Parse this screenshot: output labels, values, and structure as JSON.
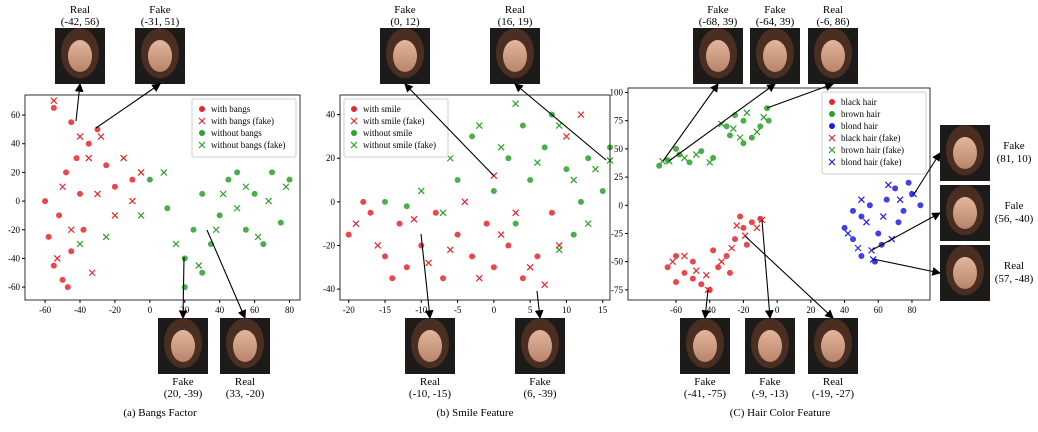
{
  "chart_data": [
    {
      "type": "scatter",
      "caption": "(a) Bangs Factor",
      "xlim": [
        -71.5,
        86
      ],
      "ylim": [
        -69,
        74
      ],
      "xticks": [
        -60,
        -40,
        -20,
        0,
        20,
        40,
        60,
        80
      ],
      "yticks": [
        -60,
        -40,
        -20,
        0,
        20,
        40,
        60
      ],
      "legend": "upper right",
      "series": [
        {
          "name": "with bangs",
          "color": "#e8262a",
          "marker": "o",
          "x": [
            -55,
            -50,
            -58,
            -45,
            -52,
            -40,
            -48,
            -42,
            -35,
            -45,
            -55,
            -30,
            -25,
            -38,
            -20,
            -10,
            -60,
            -47
          ],
          "values": [
            -45,
            -55,
            -25,
            -35,
            -10,
            5,
            20,
            30,
            40,
            55,
            65,
            50,
            25,
            -20,
            10,
            15,
            0,
            -60
          ]
        },
        {
          "name": "with bangs (fake)",
          "color": "#e8262a",
          "marker": "x",
          "x": [
            -53,
            -45,
            -50,
            -35,
            -28,
            -15,
            -5,
            -20,
            -30,
            -55,
            -40,
            -10,
            -33
          ],
          "values": [
            -40,
            -20,
            10,
            30,
            45,
            30,
            20,
            -10,
            5,
            70,
            45,
            0,
            -50
          ]
        },
        {
          "name": "without bangs",
          "color": "#2ca02c",
          "marker": "o",
          "x": [
            20,
            30,
            25,
            35,
            40,
            30,
            45,
            60,
            70,
            75,
            80,
            55,
            65,
            0,
            10,
            50,
            20
          ],
          "values": [
            -40,
            -50,
            -20,
            -30,
            -10,
            5,
            15,
            5,
            20,
            -15,
            15,
            -20,
            -30,
            15,
            -5,
            20,
            -60
          ]
        },
        {
          "name": "without bangs (fake)",
          "color": "#2ca02c",
          "marker": "x",
          "x": [
            15,
            28,
            38,
            42,
            55,
            68,
            78,
            62,
            8,
            -5,
            -25,
            50,
            -40
          ],
          "values": [
            -30,
            -45,
            -20,
            5,
            10,
            0,
            10,
            -25,
            20,
            -10,
            -25,
            -5,
            -30
          ]
        }
      ],
      "annotations": [
        {
          "label": "Real",
          "point": "(-42, 56)"
        },
        {
          "label": "Fake",
          "point": "(-31, 51)"
        },
        {
          "label": "Fake",
          "point": "(20, -39)"
        },
        {
          "label": "Real",
          "point": "(33, -20)"
        }
      ]
    },
    {
      "type": "scatter",
      "caption": "(b) Smile Feature",
      "xlim": [
        -21.2,
        16
      ],
      "ylim": [
        -45,
        49
      ],
      "xticks": [
        -20,
        -15,
        -10,
        -5,
        0,
        5,
        10,
        15
      ],
      "yticks": [
        -40,
        -20,
        0,
        20,
        40
      ],
      "legend": "upper left",
      "series": [
        {
          "name": "with smile",
          "color": "#e8262a",
          "marker": "o",
          "x": [
            -20,
            -17,
            -15,
            -13,
            -12,
            -10,
            -8,
            -7,
            -5,
            -3,
            -1,
            0,
            2,
            4,
            6,
            8,
            -14,
            -18
          ],
          "values": [
            -15,
            -5,
            -25,
            -10,
            -30,
            -20,
            -5,
            -35,
            -15,
            -25,
            -10,
            -30,
            -20,
            -35,
            -25,
            -5,
            -35,
            0
          ]
        },
        {
          "name": "with smile (fake)",
          "color": "#e8262a",
          "marker": "x",
          "x": [
            -19,
            -16,
            -11,
            -9,
            -6,
            -2,
            1,
            3,
            5,
            7,
            9,
            10,
            12,
            -4,
            0
          ],
          "values": [
            -10,
            -20,
            -8,
            -28,
            -22,
            -35,
            -15,
            -5,
            -30,
            -38,
            -20,
            30,
            40,
            0,
            12
          ]
        },
        {
          "name": "without smile",
          "color": "#2ca02c",
          "marker": "o",
          "x": [
            -12,
            -8,
            -5,
            -3,
            0,
            2,
            4,
            5,
            7,
            8,
            10,
            12,
            13,
            15,
            16,
            -15,
            3,
            11
          ],
          "values": [
            -2,
            25,
            10,
            30,
            5,
            20,
            35,
            10,
            25,
            40,
            15,
            0,
            20,
            5,
            25,
            0,
            -10,
            -15
          ]
        },
        {
          "name": "without smile (fake)",
          "color": "#2ca02c",
          "marker": "x",
          "x": [
            -10,
            -6,
            -2,
            1,
            3,
            6,
            9,
            11,
            14,
            16,
            13,
            -7,
            9
          ],
          "values": [
            5,
            20,
            35,
            25,
            45,
            18,
            35,
            10,
            15,
            19,
            -10,
            -5,
            -22
          ]
        }
      ],
      "annotations": [
        {
          "label": "Fake",
          "point": "(0, 12)"
        },
        {
          "label": "Real",
          "point": "(16, 19)"
        },
        {
          "label": "Real",
          "point": "(-10, -15)"
        },
        {
          "label": "Fake",
          "point": "(6, -39)"
        }
      ]
    },
    {
      "type": "scatter",
      "caption": "(C) Hair Color Feature",
      "xlim": [
        -88.5,
        90.7
      ],
      "ylim": [
        -84,
        104
      ],
      "xticks": [
        -60,
        -40,
        -20,
        0,
        20,
        40,
        60,
        80
      ],
      "yticks": [
        -75,
        -50,
        -25,
        0,
        25,
        50,
        75,
        100
      ],
      "legend": "upper right",
      "series": [
        {
          "name": "black hair",
          "color": "#e8262a",
          "marker": "o",
          "x": [
            -65,
            -60,
            -55,
            -50,
            -45,
            -40,
            -35,
            -30,
            -25,
            -20,
            -15,
            -10,
            -28,
            -50,
            -38,
            -18,
            -22,
            -60
          ],
          "values": [
            -55,
            -45,
            -60,
            -50,
            -70,
            -75,
            -55,
            -45,
            -30,
            -20,
            -15,
            -12,
            -60,
            -65,
            -40,
            -35,
            -10,
            -68
          ]
        },
        {
          "name": "brown hair",
          "color": "#2ca02c",
          "marker": "o",
          "x": [
            -70,
            -65,
            -58,
            -52,
            -45,
            -38,
            -30,
            -25,
            -20,
            -15,
            -10,
            -6,
            -5,
            -60,
            -20,
            -28
          ],
          "values": [
            35,
            40,
            45,
            38,
            48,
            42,
            70,
            80,
            75,
            60,
            70,
            86,
            75,
            50,
            55,
            62
          ]
        },
        {
          "name": "blond hair",
          "color": "#1f1fe0",
          "marker": "o",
          "x": [
            40,
            45,
            50,
            55,
            60,
            65,
            70,
            75,
            80,
            50,
            58,
            62,
            72,
            78,
            45,
            85
          ],
          "values": [
            -20,
            -30,
            -10,
            0,
            -25,
            5,
            15,
            -5,
            10,
            -45,
            -50,
            -35,
            -15,
            20,
            -5,
            0
          ]
        },
        {
          "name": "black hair (fake)",
          "color": "#e8262a",
          "marker": "x",
          "x": [
            -62,
            -48,
            -42,
            -33,
            -27,
            -19,
            -12,
            -9,
            -41,
            -55,
            -24
          ],
          "values": [
            -50,
            -58,
            -62,
            -50,
            -38,
            -27,
            -20,
            -13,
            -75,
            -45,
            -18
          ]
        },
        {
          "name": "brown hair (fake)",
          "color": "#2ca02c",
          "marker": "x",
          "x": [
            -68,
            -64,
            -55,
            -48,
            -40,
            -26,
            -18,
            -12,
            -8,
            -22,
            -33
          ],
          "values": [
            39,
            39,
            42,
            45,
            38,
            68,
            82,
            65,
            78,
            60,
            72
          ]
        },
        {
          "name": "blond hair (fake)",
          "color": "#1f1fe0",
          "marker": "x",
          "x": [
            42,
            48,
            53,
            56,
            57,
            63,
            68,
            73,
            81,
            66,
            50
          ],
          "values": [
            -25,
            -38,
            -15,
            -40,
            -48,
            -10,
            -30,
            5,
            10,
            18,
            5
          ]
        }
      ],
      "annotations": [
        {
          "label": "Fake",
          "point": "(-68, 39)"
        },
        {
          "label": "Fake",
          "point": "(-64, 39)"
        },
        {
          "label": "Real",
          "point": "(-6, 86)"
        },
        {
          "label": "Fake",
          "point": "(81, 10)"
        },
        {
          "label": "Fale",
          "point": "(56, -40)"
        },
        {
          "label": "Real",
          "point": "(57, -48)"
        },
        {
          "label": "Fake",
          "point": "(-41, -75)"
        },
        {
          "label": "Fake",
          "point": "(-9, -13)"
        },
        {
          "label": "Real",
          "point": "(-19, -27)"
        }
      ]
    }
  ]
}
